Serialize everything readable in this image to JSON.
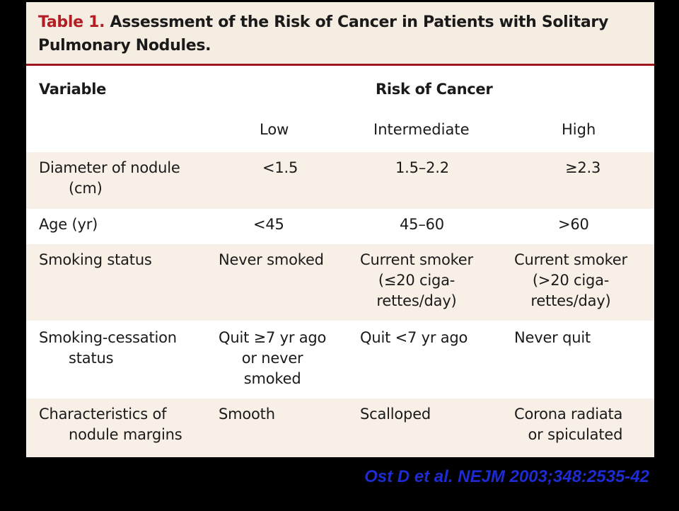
{
  "table": {
    "label": "Table 1.",
    "title": "Assessment of the Risk of Cancer in Patients with Solitary Pulmonary Nodules.",
    "header": {
      "variable": "Variable",
      "risk": "Risk of Cancer",
      "low": "Low",
      "intermediate": "Intermediate",
      "high": "High"
    },
    "rows": [
      {
        "variable": [
          "Diameter of nodule",
          "(cm)"
        ],
        "low": [
          "<1.5"
        ],
        "intermediate": [
          "1.5–2.2"
        ],
        "high": [
          "≥2.3"
        ]
      },
      {
        "variable": [
          "Age (yr)"
        ],
        "low": [
          "<45"
        ],
        "intermediate": [
          "45–60"
        ],
        "high": [
          ">60"
        ]
      },
      {
        "variable": [
          "Smoking status"
        ],
        "low": [
          "Never smoked"
        ],
        "intermediate": [
          "Current smoker",
          "(≤20 ciga-",
          "rettes/day)"
        ],
        "high": [
          "Current smoker",
          "(>20 ciga-",
          "rettes/day)"
        ]
      },
      {
        "variable": [
          "Smoking-cessation",
          "status"
        ],
        "low": [
          "Quit ≥7 yr ago",
          "or never",
          "smoked"
        ],
        "intermediate": [
          "Quit <7 yr ago"
        ],
        "high": [
          "Never quit"
        ]
      },
      {
        "variable": [
          "Characteristics of",
          "nodule margins"
        ],
        "low": [
          "Smooth"
        ],
        "intermediate": [
          "Scalloped"
        ],
        "high": [
          "Corona radiata",
          "or spiculated"
        ]
      }
    ]
  },
  "citation": "Ost D et al. NEJM 2003;348:2535-42"
}
